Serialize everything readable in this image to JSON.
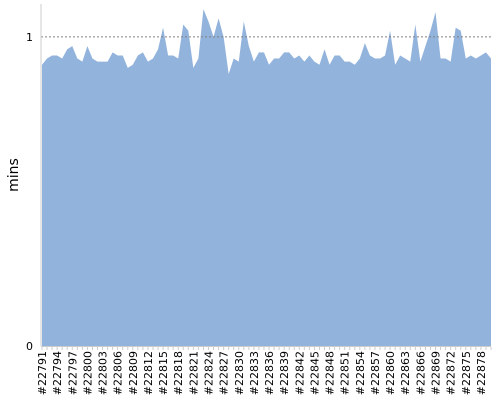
{
  "chart_data": {
    "type": "area",
    "title": "",
    "xlabel": "",
    "ylabel": "mins",
    "ylim": [
      0,
      1.1
    ],
    "yticks": [
      0,
      1
    ],
    "grid": {
      "horizontal_dotted_at": [
        1
      ]
    },
    "fill_color": "#92b3dc",
    "gridline_color": "#808080",
    "axis_color": "#cccccc",
    "x_tick_labels": [
      "#22791",
      "#22794",
      "#22797",
      "#22800",
      "#22803",
      "#22806",
      "#22809",
      "#22812",
      "#22815",
      "#22818",
      "#22821",
      "#22824",
      "#22827",
      "#22830",
      "#22833",
      "#22836",
      "#22839",
      "#22842",
      "#22845",
      "#22848",
      "#22851",
      "#22854",
      "#22857",
      "#22860",
      "#22863",
      "#22866",
      "#22869",
      "#22872",
      "#22875",
      "#22878"
    ],
    "x_start": 22791,
    "x_end": 22880,
    "series": [
      {
        "values": [
          0.91,
          0.93,
          0.94,
          0.94,
          0.93,
          0.96,
          0.97,
          0.93,
          0.92,
          0.97,
          0.93,
          0.92,
          0.92,
          0.92,
          0.95,
          0.94,
          0.94,
          0.9,
          0.91,
          0.94,
          0.95,
          0.92,
          0.93,
          0.96,
          1.03,
          0.94,
          0.94,
          0.93,
          1.04,
          1.02,
          0.9,
          0.93,
          1.09,
          1.05,
          1.0,
          1.06,
          1.0,
          0.88,
          0.93,
          0.92,
          1.05,
          0.97,
          0.92,
          0.95,
          0.95,
          0.91,
          0.93,
          0.93,
          0.95,
          0.95,
          0.93,
          0.94,
          0.92,
          0.94,
          0.92,
          0.91,
          0.96,
          0.91,
          0.94,
          0.94,
          0.92,
          0.92,
          0.91,
          0.93,
          0.98,
          0.94,
          0.93,
          0.93,
          0.94,
          1.02,
          0.91,
          0.94,
          0.93,
          0.92,
          1.04,
          0.92,
          0.97,
          1.02,
          1.08,
          0.93,
          0.93,
          0.92,
          1.03,
          1.02,
          0.93,
          0.94,
          0.93,
          0.94,
          0.95,
          0.93
        ]
      }
    ]
  }
}
